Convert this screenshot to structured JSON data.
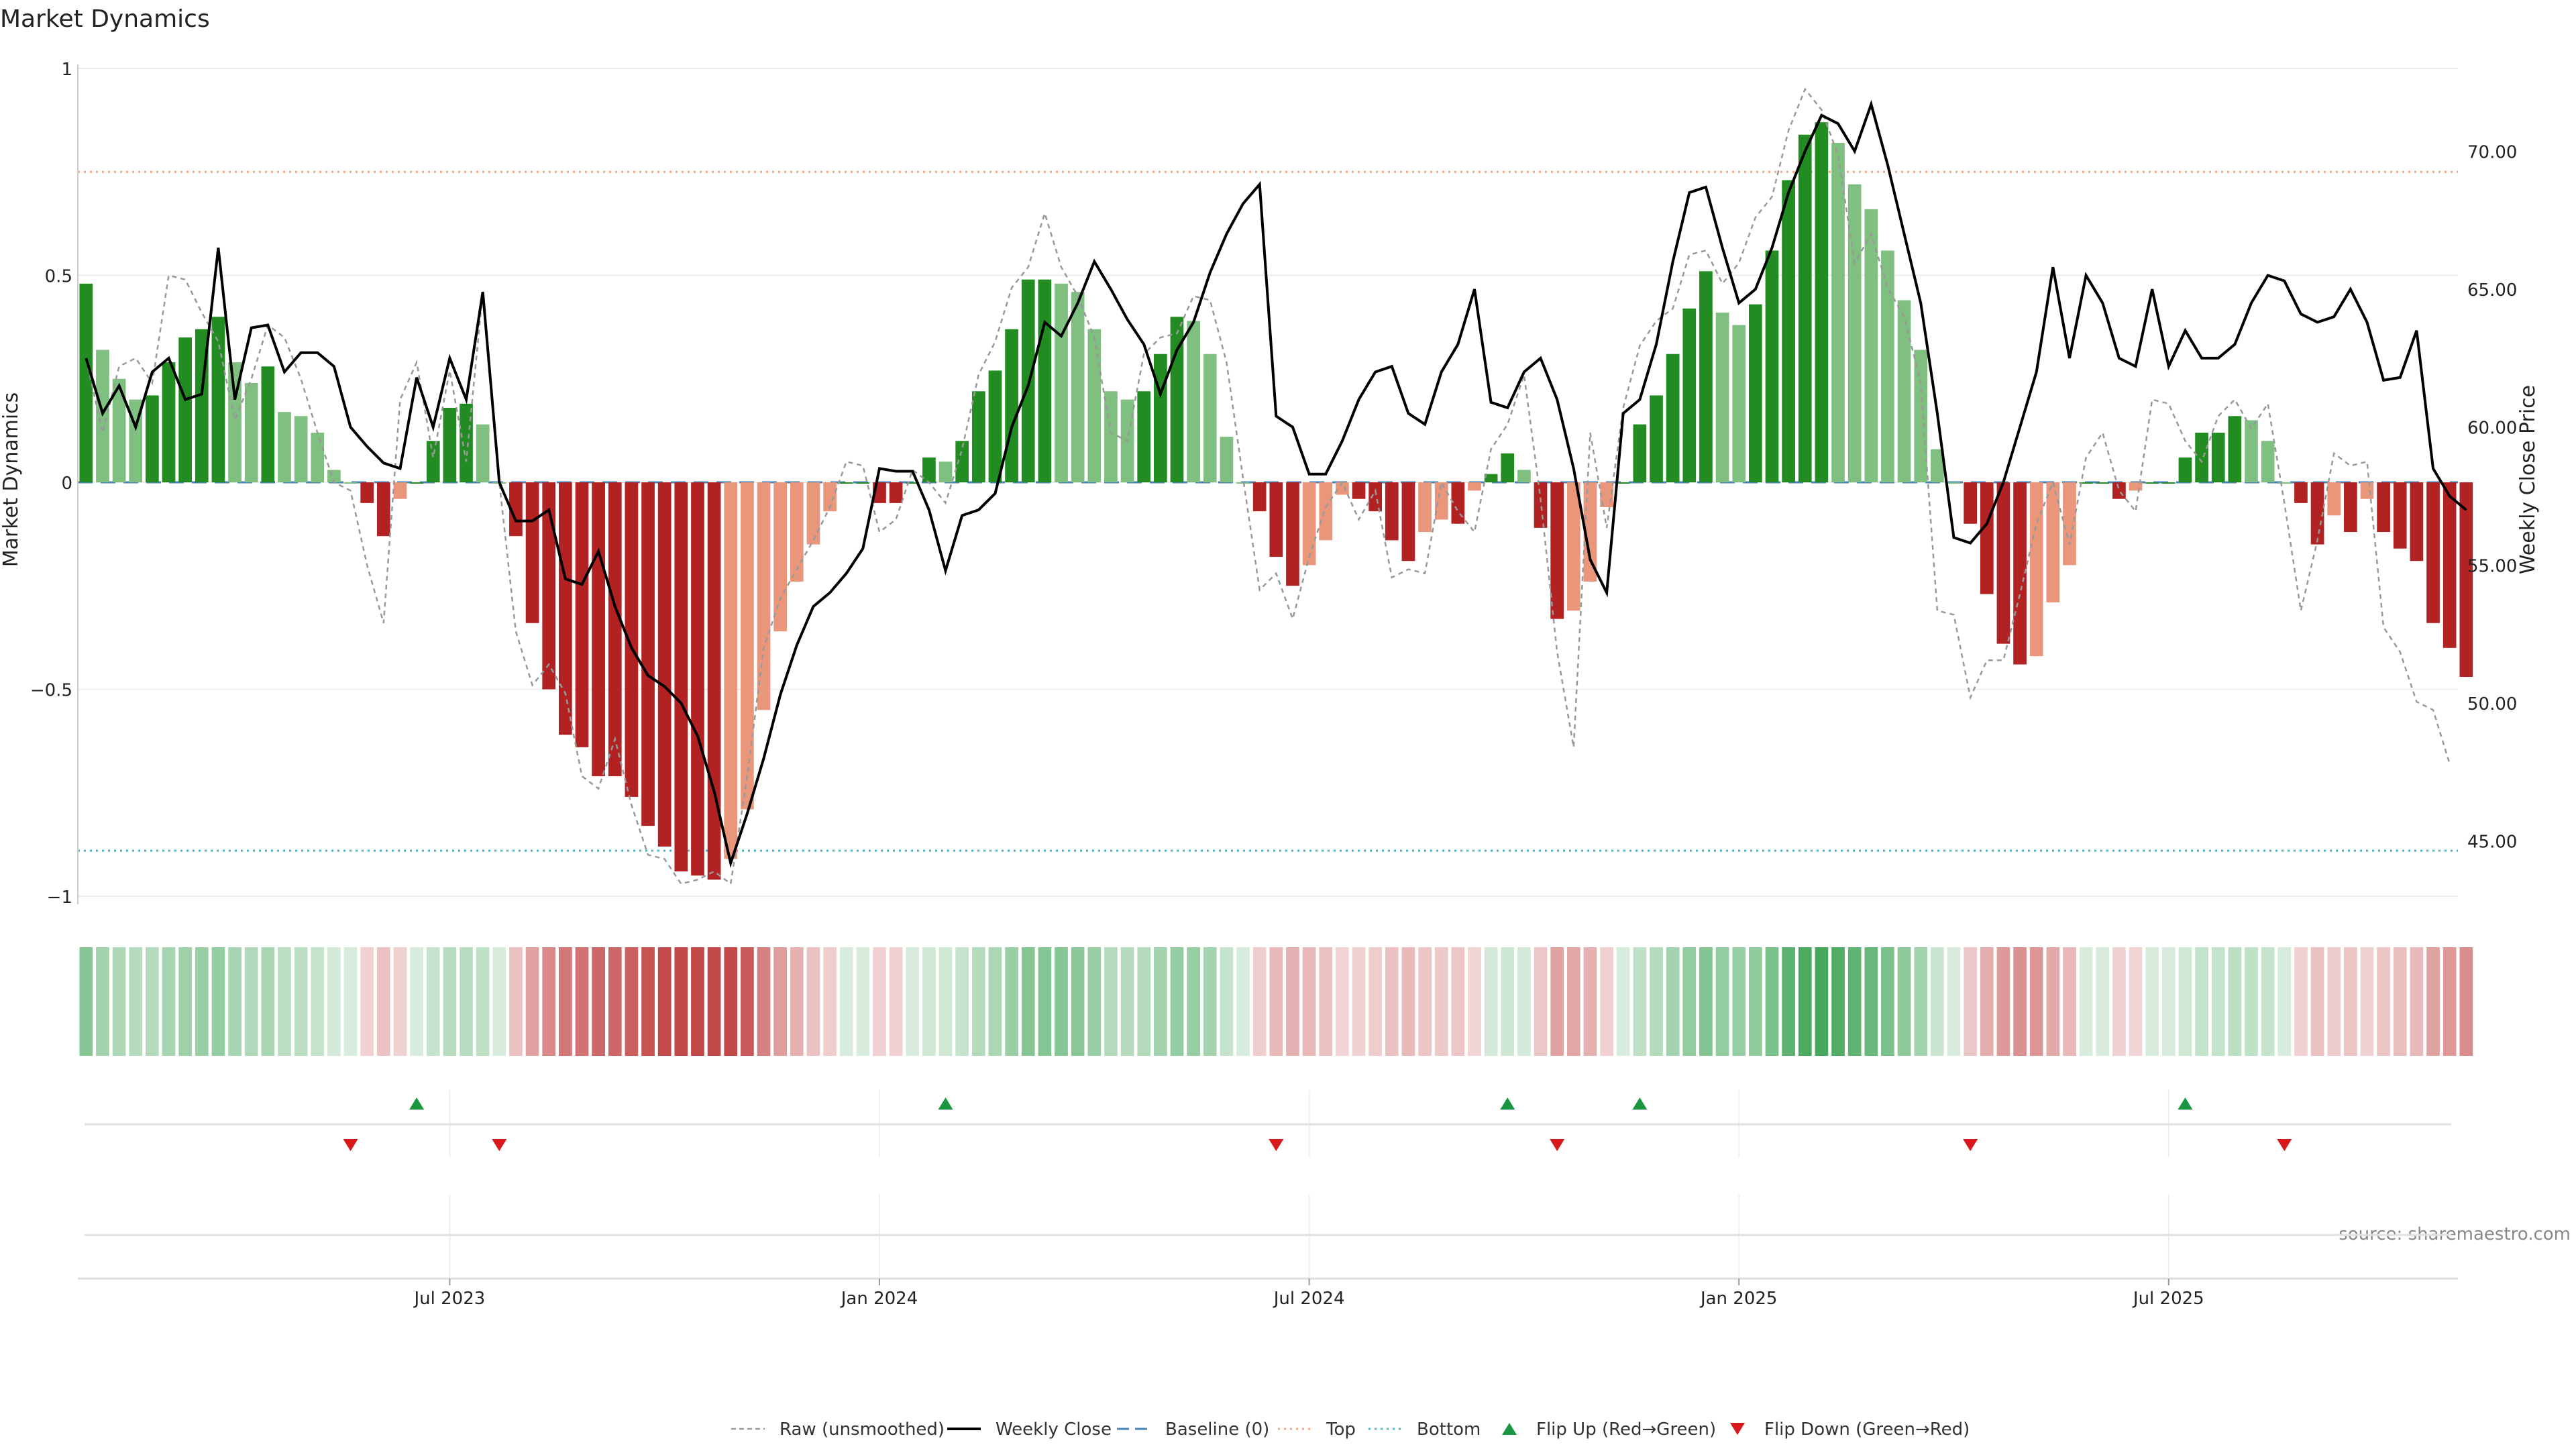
{
  "chart_data": {
    "type": "bar",
    "title": "Market Dynamics",
    "ylabel_left": "Market Dynamics",
    "ylabel_right": "Weekly Close Price",
    "ylim_left": [
      -1,
      1
    ],
    "ylim_right": [
      43.0,
      73.0
    ],
    "left_ticks": [
      {
        "v": 1,
        "label": "1"
      },
      {
        "v": 0.5,
        "label": "0.5"
      },
      {
        "v": 0,
        "label": "0"
      },
      {
        "v": -0.5,
        "label": "−0.5"
      },
      {
        "v": -1,
        "label": "−1"
      }
    ],
    "right_ticks": [
      {
        "v": 70,
        "label": "70.00"
      },
      {
        "v": 65,
        "label": "65.00"
      },
      {
        "v": 60,
        "label": "60.00"
      },
      {
        "v": 55,
        "label": "55.00"
      },
      {
        "v": 50,
        "label": "50.00"
      },
      {
        "v": 45,
        "label": "45.00"
      }
    ],
    "x_ticks": [
      {
        "i": 22,
        "label": "Jul 2023"
      },
      {
        "i": 48,
        "label": "Jan 2024"
      },
      {
        "i": 74,
        "label": "Jul 2024"
      },
      {
        "i": 100,
        "label": "Jan 2025"
      },
      {
        "i": 126,
        "label": "Jul 2025"
      }
    ],
    "top_line": 0.75,
    "bottom_line": -0.89,
    "n_weeks": 144,
    "market_dynamics": [
      0.48,
      0.32,
      0.25,
      0.2,
      0.21,
      0.29,
      0.35,
      0.37,
      0.4,
      0.29,
      0.24,
      0.28,
      0.17,
      0.16,
      0.12,
      0.03,
      0.0,
      -0.05,
      -0.13,
      -0.04,
      0.0,
      0.1,
      0.18,
      0.19,
      0.14,
      0.0,
      -0.13,
      -0.34,
      -0.5,
      -0.61,
      -0.64,
      -0.71,
      -0.71,
      -0.76,
      -0.83,
      -0.88,
      -0.94,
      -0.95,
      -0.96,
      -0.91,
      -0.79,
      -0.55,
      -0.36,
      -0.24,
      -0.15,
      -0.07,
      0.0,
      0.0,
      -0.05,
      -0.05,
      0.0,
      0.06,
      0.05,
      0.1,
      0.22,
      0.27,
      0.37,
      0.49,
      0.49,
      0.48,
      0.46,
      0.37,
      0.22,
      0.2,
      0.22,
      0.31,
      0.4,
      0.39,
      0.31,
      0.11,
      0.0,
      -0.07,
      -0.18,
      -0.25,
      -0.2,
      -0.14,
      -0.03,
      -0.04,
      -0.07,
      -0.14,
      -0.19,
      -0.12,
      -0.09,
      -0.1,
      -0.02,
      0.02,
      0.07,
      0.03,
      -0.11,
      -0.33,
      -0.31,
      -0.24,
      -0.06,
      0.0,
      0.14,
      0.21,
      0.31,
      0.42,
      0.51,
      0.41,
      0.38,
      0.43,
      0.56,
      0.73,
      0.84,
      0.87,
      0.82,
      0.72,
      0.66,
      0.56,
      0.44,
      0.32,
      0.08,
      0.0,
      -0.1,
      -0.27,
      -0.39,
      -0.44,
      -0.42,
      -0.29,
      -0.2,
      0.0,
      0.0,
      -0.04,
      -0.02,
      0.0,
      0.0,
      0.06,
      0.12,
      0.12,
      0.16,
      0.15,
      0.1,
      0.0,
      -0.05,
      -0.15,
      -0.08,
      -0.12,
      -0.04,
      -0.12,
      -0.16,
      -0.19,
      -0.34,
      -0.4,
      -0.47
    ],
    "weekly_close": [
      62.5,
      60.5,
      61.5,
      60.0,
      62.0,
      62.5,
      61.0,
      61.2,
      66.5,
      61.0,
      63.6,
      63.7,
      62.0,
      62.7,
      62.7,
      62.2,
      60.0,
      59.3,
      58.7,
      58.5,
      61.8,
      60.0,
      62.5,
      61.0,
      64.9,
      58.0,
      56.6,
      56.6,
      57.0,
      54.5,
      54.3,
      55.5,
      53.5,
      52.0,
      51.0,
      50.6,
      50.0,
      48.8,
      46.8,
      44.2,
      46.0,
      48.0,
      50.3,
      52.1,
      53.5,
      54.0,
      54.7,
      55.6,
      58.5,
      58.4,
      58.4,
      57.0,
      54.8,
      56.8,
      57.0,
      57.6,
      60.0,
      61.5,
      63.8,
      63.3,
      64.5,
      66.0,
      65.0,
      63.9,
      63.0,
      61.2,
      62.8,
      63.8,
      65.6,
      67.0,
      68.1,
      68.8,
      60.4,
      60.0,
      58.3,
      58.3,
      59.5,
      61.0,
      62.0,
      62.2,
      60.5,
      60.1,
      62.0,
      63.0,
      65.0,
      60.9,
      60.7,
      62.0,
      62.5,
      61.0,
      58.5,
      55.2,
      54.0,
      60.5,
      61.0,
      63.0,
      66.0,
      68.5,
      68.7,
      66.5,
      64.5,
      65.0,
      66.5,
      68.5,
      70.0,
      71.3,
      71.0,
      70.0,
      71.7,
      69.5,
      67.0,
      64.5,
      60.5,
      56.0,
      55.8,
      56.5,
      58.0,
      60.0,
      62.0,
      65.8,
      62.5,
      65.5,
      64.5,
      62.5,
      62.2,
      65.0,
      62.2,
      63.5,
      62.5,
      62.5,
      63.0,
      64.5,
      65.5,
      65.3,
      64.1,
      63.8,
      64.0,
      65.0,
      63.8,
      61.7,
      61.8,
      63.5,
      58.5,
      57.5,
      57.0
    ],
    "raw_unsmoothed": [
      0.3,
      0.12,
      0.28,
      0.3,
      0.24,
      0.5,
      0.49,
      0.41,
      0.34,
      0.15,
      0.25,
      0.38,
      0.35,
      0.25,
      0.12,
      0.0,
      -0.02,
      -0.2,
      -0.34,
      0.2,
      0.29,
      0.06,
      0.27,
      0.05,
      0.46,
      0.0,
      -0.36,
      -0.49,
      -0.44,
      -0.51,
      -0.71,
      -0.74,
      -0.62,
      -0.78,
      -0.9,
      -0.91,
      -0.97,
      -0.96,
      -0.94,
      -0.97,
      -0.71,
      -0.4,
      -0.28,
      -0.21,
      -0.14,
      -0.06,
      0.05,
      0.04,
      -0.12,
      -0.09,
      0.03,
      0.0,
      -0.05,
      0.08,
      0.26,
      0.34,
      0.47,
      0.52,
      0.65,
      0.52,
      0.45,
      0.35,
      0.12,
      0.1,
      0.31,
      0.35,
      0.36,
      0.45,
      0.44,
      0.29,
      0.01,
      -0.26,
      -0.22,
      -0.33,
      -0.18,
      -0.06,
      0.0,
      -0.09,
      -0.02,
      -0.23,
      -0.21,
      -0.22,
      0.0,
      -0.07,
      -0.12,
      0.08,
      0.14,
      0.26,
      -0.04,
      -0.41,
      -0.64,
      0.12,
      -0.11,
      0.18,
      0.33,
      0.39,
      0.42,
      0.55,
      0.56,
      0.48,
      0.53,
      0.64,
      0.69,
      0.85,
      0.95,
      0.9,
      0.79,
      0.53,
      0.6,
      0.47,
      0.4,
      0.24,
      -0.31,
      -0.32,
      -0.52,
      -0.43,
      -0.43,
      -0.27,
      -0.1,
      0.0,
      -0.15,
      0.06,
      0.12,
      -0.02,
      -0.07,
      0.2,
      0.19,
      0.1,
      0.05,
      0.16,
      0.2,
      0.13,
      0.19,
      -0.05,
      -0.31,
      -0.14,
      0.07,
      0.04,
      0.05,
      -0.35,
      -0.41,
      -0.53,
      -0.55,
      -0.68
    ],
    "flip_up_weeks": [
      20,
      52,
      86,
      94,
      127
    ],
    "flip_down_weeks": [
      16,
      25,
      72,
      89,
      114,
      133
    ],
    "legend": [
      "Raw (unsmoothed)",
      "Weekly Close",
      "Baseline (0)",
      "Top",
      "Bottom",
      "Flip Up (Red→Green)",
      "Flip Down (Green→Red)"
    ],
    "source": "source: sharemaestro.com"
  },
  "colors": {
    "green_dark": "#228b22",
    "green_light": "#7fbf7f",
    "red_dark": "#b22222",
    "red_light": "#e9967a",
    "price": "#000000",
    "raw": "#999999",
    "baseline": "#4682b4",
    "top": "#f4a582",
    "bottom": "#4fb3c8",
    "flip_up": "#1a9641",
    "flip_down": "#d7191c"
  }
}
